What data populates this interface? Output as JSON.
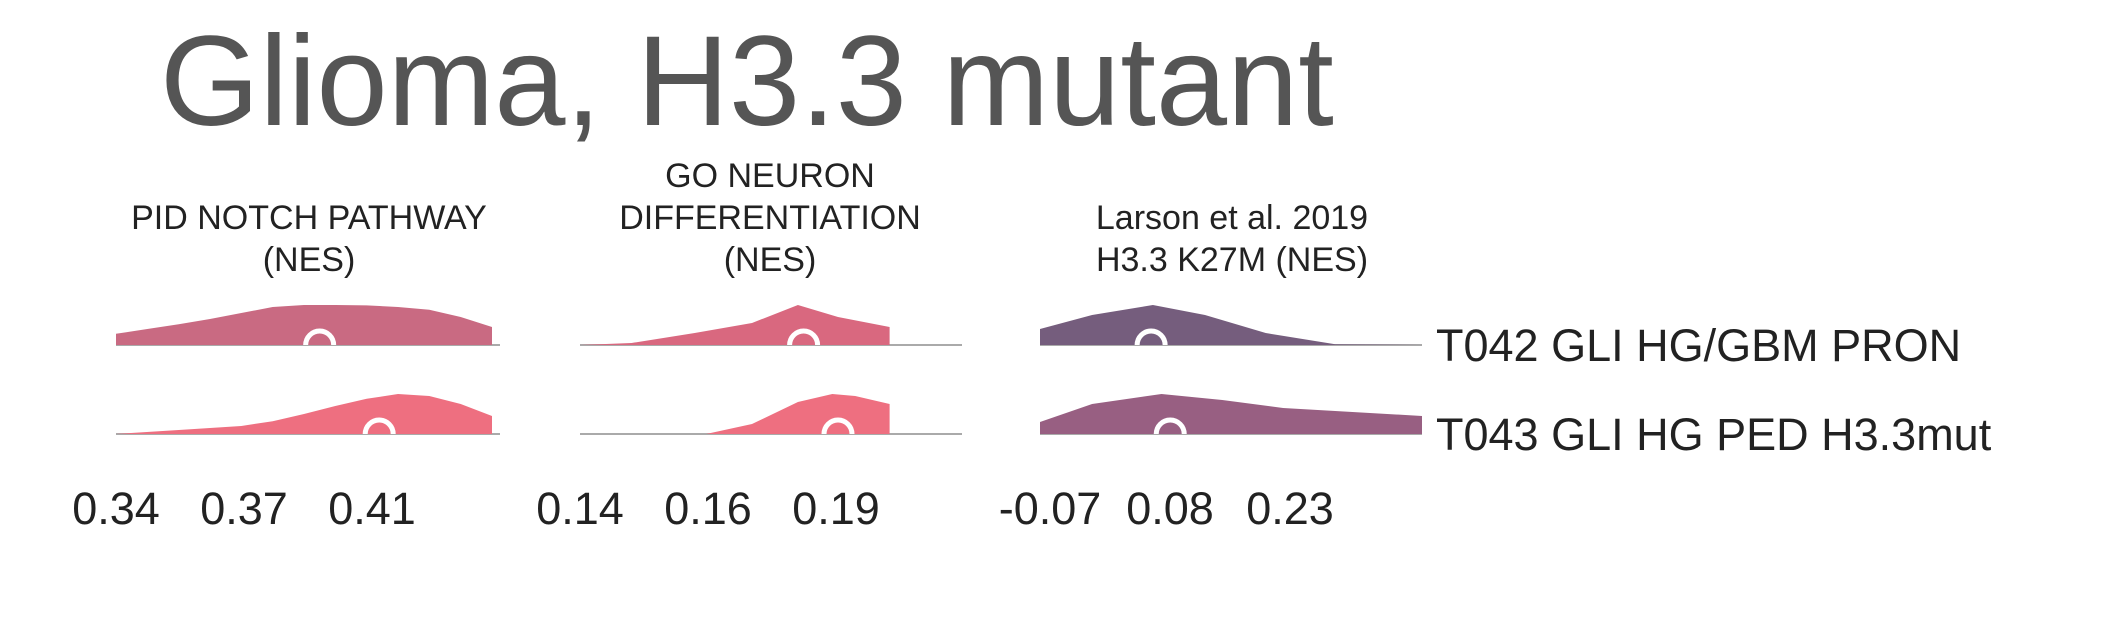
{
  "title": "Glioma, H3.3 mutant",
  "colors": {
    "title_text": "#555555",
    "baseline": "#aaaaaa",
    "marker": "#ffffff"
  },
  "chart_data": {
    "type": "ridgeline",
    "rows": [
      "T042 GLI HG/GBM PRON",
      "T043 GLI HG PED H3.3mut"
    ],
    "panels": [
      {
        "title_lines": [
          "PID NOTCH PATHWAY",
          "(NES)"
        ],
        "ticks": [
          0.34,
          0.37,
          0.41
        ],
        "tick_labels": [
          "0.34",
          "0.37",
          "0.41"
        ],
        "xlim": [
          0.32,
          0.44
        ],
        "series": [
          {
            "row": "T042 GLI HG/GBM PRON",
            "color": "#c96a82",
            "median": 0.385,
            "density": [
              [
                0.32,
                0.28
              ],
              [
                0.33,
                0.4
              ],
              [
                0.34,
                0.52
              ],
              [
                0.35,
                0.65
              ],
              [
                0.36,
                0.8
              ],
              [
                0.37,
                0.95
              ],
              [
                0.38,
                1.0
              ],
              [
                0.39,
                1.0
              ],
              [
                0.4,
                0.99
              ],
              [
                0.41,
                0.95
              ],
              [
                0.42,
                0.88
              ],
              [
                0.43,
                0.7
              ],
              [
                0.44,
                0.45
              ]
            ]
          },
          {
            "row": "T043 GLI HG PED H3.3mut",
            "color": "#ee6f80",
            "median": 0.404,
            "density": [
              [
                0.32,
                0.0
              ],
              [
                0.34,
                0.1
              ],
              [
                0.36,
                0.2
              ],
              [
                0.37,
                0.32
              ],
              [
                0.38,
                0.5
              ],
              [
                0.39,
                0.7
              ],
              [
                0.4,
                0.88
              ],
              [
                0.41,
                1.0
              ],
              [
                0.42,
                0.95
              ],
              [
                0.43,
                0.75
              ],
              [
                0.44,
                0.45
              ]
            ]
          }
        ]
      },
      {
        "title_lines": [
          "GO NEURON",
          "DIFFERENTIATION",
          "(NES)"
        ],
        "ticks": [
          0.14,
          0.16,
          0.19
        ],
        "tick_labels": [
          "0.14",
          "0.16",
          "0.19"
        ],
        "xlim": [
          0.14,
          0.2
        ],
        "series": [
          {
            "row": "T042 GLI HG/GBM PRON",
            "color": "#d9687f",
            "median": 0.179,
            "density": [
              [
                0.14,
                0.0
              ],
              [
                0.149,
                0.05
              ],
              [
                0.16,
                0.3
              ],
              [
                0.17,
                0.55
              ],
              [
                0.178,
                1.0
              ],
              [
                0.185,
                0.7
              ],
              [
                0.194,
                0.45
              ]
            ]
          },
          {
            "row": "T043 GLI HG PED H3.3mut",
            "color": "#ee6f80",
            "median": 0.185,
            "density": [
              [
                0.14,
                0.0
              ],
              [
                0.162,
                0.0
              ],
              [
                0.17,
                0.25
              ],
              [
                0.178,
                0.8
              ],
              [
                0.184,
                1.0
              ],
              [
                0.188,
                0.95
              ],
              [
                0.194,
                0.75
              ]
            ]
          }
        ]
      },
      {
        "title_lines": [
          "Larson et al. 2019",
          "H3.3 K27M (NES)"
        ],
        "ticks": [
          -0.07,
          0.08,
          0.23
        ],
        "tick_labels": [
          "-0.07",
          "0.08",
          "0.23"
        ],
        "xlim": [
          -0.06,
          0.38
        ],
        "series": [
          {
            "row": "T042 GLI HG/GBM PRON",
            "color": "#755d7d",
            "median": 0.068,
            "density": [
              [
                -0.06,
                0.4
              ],
              [
                0.0,
                0.75
              ],
              [
                0.07,
                1.0
              ],
              [
                0.13,
                0.75
              ],
              [
                0.2,
                0.3
              ],
              [
                0.28,
                0.02
              ],
              [
                0.38,
                0.0
              ]
            ]
          },
          {
            "row": "T043 GLI HG PED H3.3mut",
            "color": "#985f82",
            "median": 0.09,
            "density": [
              [
                -0.06,
                0.3
              ],
              [
                0.0,
                0.75
              ],
              [
                0.08,
                1.0
              ],
              [
                0.15,
                0.85
              ],
              [
                0.22,
                0.65
              ],
              [
                0.3,
                0.55
              ],
              [
                0.38,
                0.45
              ]
            ]
          }
        ]
      }
    ]
  }
}
